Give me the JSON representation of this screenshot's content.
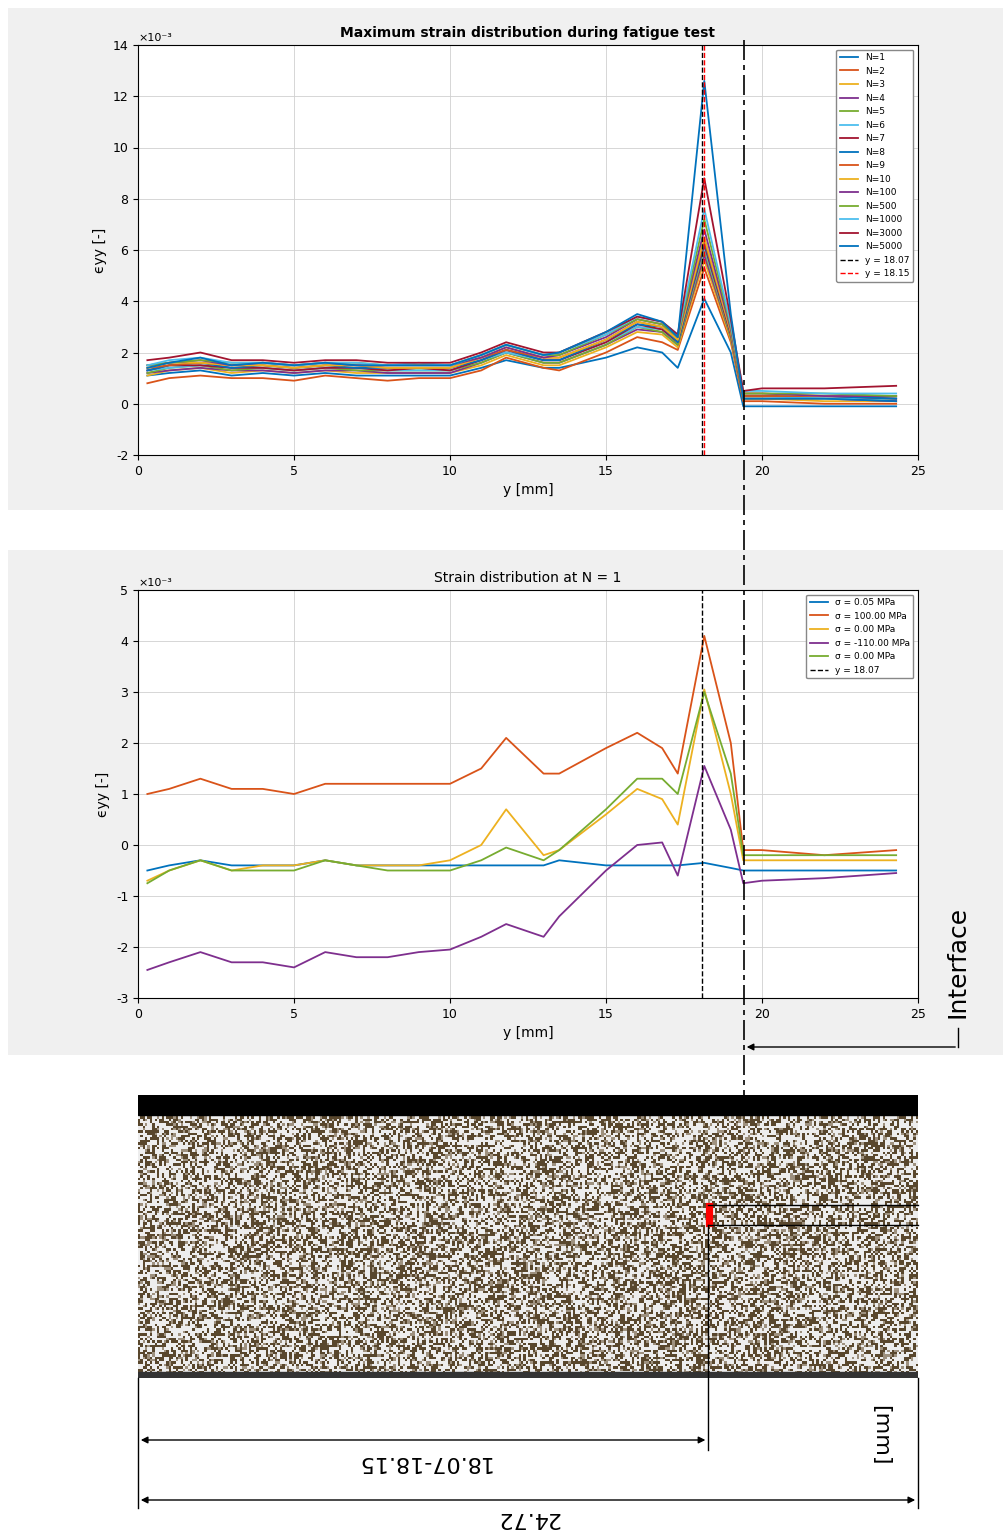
{
  "chart_data": [
    {
      "type": "line",
      "title": "Maximum strain distribution during fatigue test",
      "x_label": "y [mm]",
      "y_label": "ϵyy [-]",
      "y_multiplier": "×10⁻³",
      "xlim": [
        0,
        25
      ],
      "xticks": [
        0,
        5,
        10,
        15,
        20,
        25
      ],
      "ylim": [
        -2,
        14
      ],
      "yticks": [
        -2,
        0,
        2,
        4,
        6,
        8,
        10,
        12,
        14
      ],
      "grid": true,
      "legend": "upper right",
      "x": [
        0.3,
        1,
        2,
        3,
        4,
        5,
        6,
        7,
        8,
        9,
        10,
        11,
        11.8,
        13,
        13.5,
        15,
        16,
        16.8,
        17.3,
        18.15,
        19.0,
        19.4,
        20,
        22,
        24.3
      ],
      "series": [
        {
          "name": "N=1",
          "color": "#0072BD",
          "values": [
            1.1,
            1.2,
            1.3,
            1.1,
            1.2,
            1.1,
            1.2,
            1.1,
            1.1,
            1.1,
            1.1,
            1.4,
            1.7,
            1.4,
            1.4,
            1.8,
            2.2,
            2.0,
            1.4,
            4.1,
            2.0,
            -0.1,
            -0.1,
            -0.1,
            -0.1
          ]
        },
        {
          "name": "N=2",
          "color": "#D95319",
          "values": [
            0.8,
            1.0,
            1.1,
            1.0,
            1.0,
            0.9,
            1.1,
            1.0,
            0.9,
            1.0,
            1.0,
            1.3,
            1.8,
            1.4,
            1.3,
            2.0,
            2.6,
            2.4,
            2.1,
            5.3,
            2.4,
            0.1,
            0.1,
            0.0,
            0.0
          ]
        },
        {
          "name": "N=3",
          "color": "#EDB120",
          "values": [
            1.1,
            1.3,
            1.4,
            1.2,
            1.3,
            1.2,
            1.3,
            1.2,
            1.2,
            1.2,
            1.2,
            1.5,
            1.9,
            1.5,
            1.5,
            2.2,
            2.8,
            2.7,
            2.2,
            5.6,
            2.5,
            0.2,
            0.2,
            0.1,
            0.1
          ]
        },
        {
          "name": "N=4",
          "color": "#7E2F8E",
          "values": [
            1.2,
            1.3,
            1.4,
            1.3,
            1.3,
            1.2,
            1.3,
            1.3,
            1.2,
            1.2,
            1.2,
            1.6,
            2.0,
            1.6,
            1.6,
            2.3,
            2.9,
            2.8,
            2.3,
            5.8,
            2.6,
            0.2,
            0.2,
            0.2,
            0.1
          ]
        },
        {
          "name": "N=5",
          "color": "#77AC30",
          "values": [
            1.2,
            1.4,
            1.5,
            1.3,
            1.4,
            1.3,
            1.4,
            1.3,
            1.3,
            1.3,
            1.3,
            1.6,
            2.0,
            1.6,
            1.6,
            2.3,
            3.0,
            2.8,
            2.3,
            6.0,
            2.6,
            0.2,
            0.2,
            0.2,
            0.2
          ]
        },
        {
          "name": "N=6",
          "color": "#4DBEEE",
          "values": [
            1.3,
            1.4,
            1.5,
            1.4,
            1.4,
            1.3,
            1.4,
            1.4,
            1.3,
            1.3,
            1.3,
            1.7,
            2.0,
            1.7,
            1.7,
            2.4,
            3.0,
            2.9,
            2.4,
            6.1,
            2.7,
            0.3,
            0.3,
            0.2,
            0.2
          ]
        },
        {
          "name": "N=7",
          "color": "#A2142F",
          "values": [
            1.3,
            1.5,
            1.5,
            1.4,
            1.4,
            1.3,
            1.4,
            1.4,
            1.3,
            1.4,
            1.3,
            1.7,
            2.1,
            1.7,
            1.7,
            2.4,
            3.1,
            2.9,
            2.4,
            6.2,
            2.7,
            0.3,
            0.3,
            0.3,
            0.2
          ]
        },
        {
          "name": "N=8",
          "color": "#0072BD",
          "values": [
            1.3,
            1.5,
            1.6,
            1.4,
            1.5,
            1.4,
            1.5,
            1.4,
            1.4,
            1.4,
            1.4,
            1.7,
            2.1,
            1.7,
            1.7,
            2.5,
            3.1,
            3.0,
            2.4,
            6.3,
            2.8,
            0.3,
            0.3,
            0.3,
            0.2
          ]
        },
        {
          "name": "N=9",
          "color": "#D95319",
          "values": [
            1.4,
            1.5,
            1.6,
            1.5,
            1.5,
            1.4,
            1.5,
            1.5,
            1.4,
            1.4,
            1.4,
            1.8,
            2.1,
            1.8,
            1.8,
            2.5,
            3.2,
            3.0,
            2.5,
            6.4,
            2.8,
            0.3,
            0.3,
            0.3,
            0.3
          ]
        },
        {
          "name": "N=10",
          "color": "#EDB120",
          "values": [
            1.4,
            1.6,
            1.6,
            1.5,
            1.5,
            1.4,
            1.5,
            1.5,
            1.4,
            1.4,
            1.4,
            1.8,
            2.2,
            1.8,
            1.8,
            2.5,
            3.2,
            3.0,
            2.5,
            6.5,
            2.8,
            0.4,
            0.4,
            0.3,
            0.3
          ]
        },
        {
          "name": "N=100",
          "color": "#7E2F8E",
          "values": [
            1.5,
            1.6,
            1.7,
            1.5,
            1.6,
            1.5,
            1.6,
            1.5,
            1.5,
            1.5,
            1.5,
            1.8,
            2.2,
            1.8,
            1.9,
            2.6,
            3.3,
            3.1,
            2.6,
            6.8,
            2.9,
            0.4,
            0.4,
            0.3,
            0.3
          ]
        },
        {
          "name": "N=500",
          "color": "#77AC30",
          "values": [
            1.5,
            1.6,
            1.7,
            1.6,
            1.6,
            1.5,
            1.6,
            1.6,
            1.5,
            1.5,
            1.5,
            1.9,
            2.3,
            1.9,
            1.9,
            2.7,
            3.3,
            3.1,
            2.6,
            7.2,
            3.0,
            0.4,
            0.4,
            0.4,
            0.3
          ]
        },
        {
          "name": "N=1000",
          "color": "#4DBEEE",
          "values": [
            1.5,
            1.7,
            1.8,
            1.6,
            1.6,
            1.5,
            1.6,
            1.6,
            1.5,
            1.6,
            1.5,
            1.9,
            2.3,
            1.9,
            2.0,
            2.7,
            3.4,
            3.2,
            2.7,
            7.6,
            3.1,
            0.5,
            0.5,
            0.4,
            0.4
          ]
        },
        {
          "name": "N=3000",
          "color": "#A2142F",
          "values": [
            1.7,
            1.8,
            2.0,
            1.7,
            1.7,
            1.6,
            1.7,
            1.7,
            1.6,
            1.6,
            1.6,
            2.0,
            2.4,
            2.0,
            2.0,
            2.8,
            3.4,
            3.2,
            2.7,
            8.8,
            3.3,
            0.5,
            0.6,
            0.6,
            0.7
          ]
        },
        {
          "name": "N=5000",
          "color": "#0072BD",
          "values": [
            1.4,
            1.6,
            1.8,
            1.5,
            1.6,
            1.5,
            1.6,
            1.5,
            1.5,
            1.5,
            1.5,
            1.9,
            2.3,
            1.9,
            2.0,
            2.8,
            3.5,
            3.2,
            2.6,
            12.6,
            3.5,
            0.2,
            0.2,
            0.2,
            0.1
          ]
        }
      ],
      "reference_lines": [
        {
          "name": "y = 18.07",
          "x": 18.07,
          "color": "#000000",
          "line_style": "dashed"
        },
        {
          "name": "y = 18.15",
          "x": 18.15,
          "color": "#FF0000",
          "line_style": "dashed"
        }
      ]
    },
    {
      "type": "line",
      "title": "Strain distribution at N = 1",
      "x_label": "y [mm]",
      "y_label": "ϵyy [-]",
      "y_multiplier": "×10⁻³",
      "xlim": [
        0,
        25
      ],
      "xticks": [
        0,
        5,
        10,
        15,
        20,
        25
      ],
      "ylim": [
        -3,
        5
      ],
      "yticks": [
        -3,
        -2,
        -1,
        0,
        1,
        2,
        3,
        4,
        5
      ],
      "grid": true,
      "legend": "upper right",
      "x": [
        0.3,
        1,
        2,
        3,
        4,
        5,
        6,
        7,
        8,
        9,
        10,
        11,
        11.8,
        13,
        13.5,
        15,
        16,
        16.8,
        17.3,
        18.15,
        19.0,
        19.4,
        20,
        22,
        24.3
      ],
      "series": [
        {
          "name": "σ = 0.05 MPa",
          "color": "#0072BD",
          "values": [
            -0.5,
            -0.4,
            -0.3,
            -0.4,
            -0.4,
            -0.4,
            -0.3,
            -0.4,
            -0.4,
            -0.4,
            -0.4,
            -0.4,
            -0.4,
            -0.4,
            -0.3,
            -0.4,
            -0.4,
            -0.4,
            -0.4,
            -0.35,
            -0.45,
            -0.5,
            -0.5,
            -0.5,
            -0.5
          ]
        },
        {
          "name": "σ = 100.00 MPa",
          "color": "#D95319",
          "values": [
            1.0,
            1.1,
            1.3,
            1.1,
            1.1,
            1.0,
            1.2,
            1.2,
            1.2,
            1.2,
            1.2,
            1.5,
            2.1,
            1.4,
            1.4,
            1.9,
            2.2,
            1.9,
            1.4,
            4.1,
            2.0,
            -0.1,
            -0.1,
            -0.2,
            -0.1
          ]
        },
        {
          "name": "σ = 0.00 MPa",
          "color": "#EDB120",
          "values": [
            -0.7,
            -0.5,
            -0.3,
            -0.5,
            -0.4,
            -0.4,
            -0.3,
            -0.4,
            -0.4,
            -0.4,
            -0.3,
            0.0,
            0.7,
            -0.2,
            -0.1,
            0.6,
            1.1,
            0.9,
            0.4,
            3.05,
            1.0,
            -0.3,
            -0.3,
            -0.3,
            -0.3
          ]
        },
        {
          "name": "σ = -110.00 MPa",
          "color": "#7E2F8E",
          "values": [
            -2.45,
            -2.3,
            -2.1,
            -2.3,
            -2.3,
            -2.4,
            -2.1,
            -2.2,
            -2.2,
            -2.1,
            -2.05,
            -1.8,
            -1.55,
            -1.8,
            -1.4,
            -0.5,
            0.0,
            0.05,
            -0.6,
            1.55,
            0.3,
            -0.75,
            -0.7,
            -0.65,
            -0.55
          ]
        },
        {
          "name": "σ = 0.00 MPa",
          "color": "#77AC30",
          "values": [
            -0.75,
            -0.5,
            -0.3,
            -0.5,
            -0.5,
            -0.5,
            -0.3,
            -0.4,
            -0.5,
            -0.5,
            -0.5,
            -0.3,
            -0.05,
            -0.3,
            -0.1,
            0.7,
            1.3,
            1.3,
            1.0,
            3.0,
            1.4,
            -0.2,
            -0.2,
            -0.2,
            -0.2
          ]
        }
      ],
      "reference_lines": [
        {
          "name": "y = 18.07",
          "x": 18.07,
          "color": "#000000",
          "line_style": "dashed"
        }
      ]
    }
  ],
  "interface": {
    "label": "Interface",
    "x": 19.42
  },
  "photo": {
    "width_mm": 24.72,
    "crack_from": 18.07,
    "crack_to": 18.15,
    "crack_label": "18.07-18.15",
    "unit_label": "[mm]"
  }
}
